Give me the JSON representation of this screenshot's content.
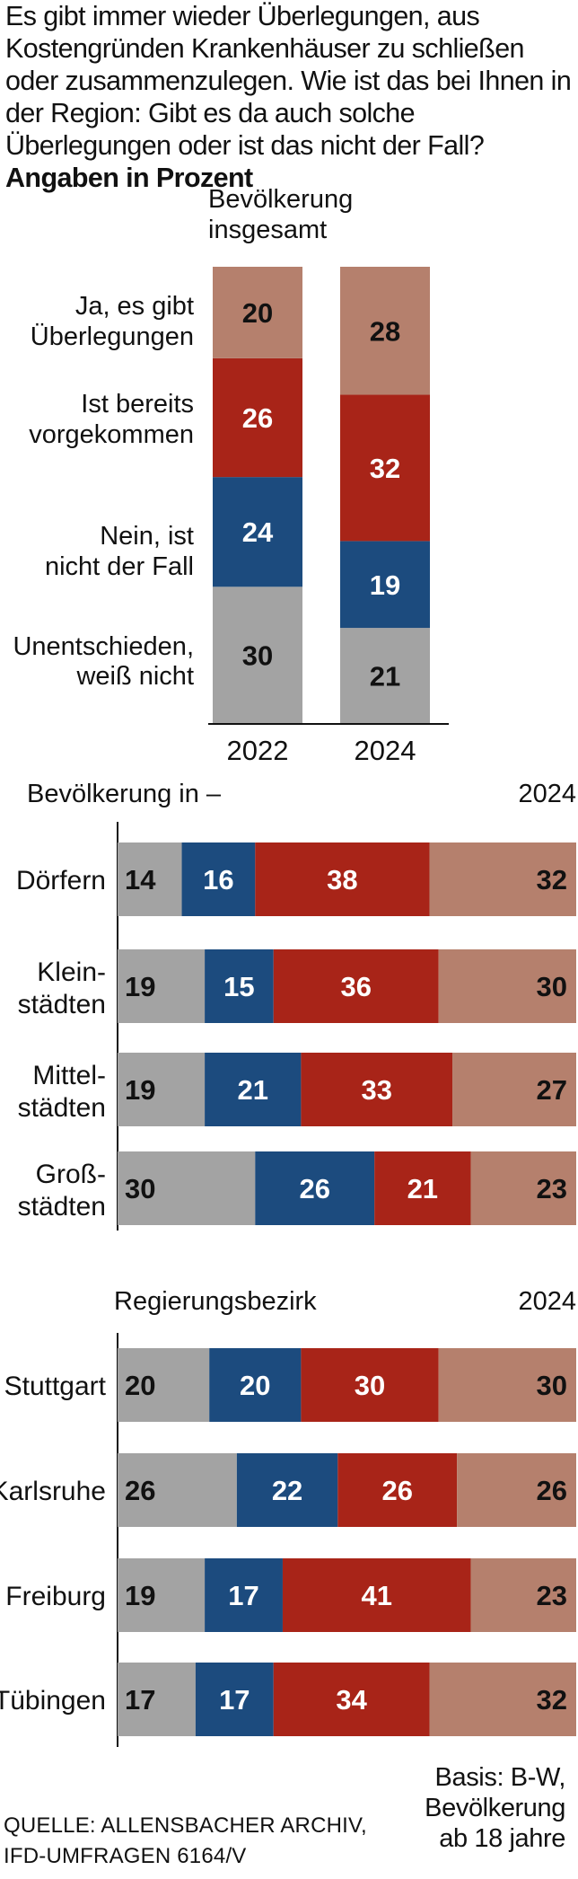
{
  "header": {
    "question": "Es gibt immer wieder Überlegungen, aus Kosten­gründen Krankenhäuser zu schließen oder zu­sammenzulegen. Wie ist das bei Ihnen in der Region: Gibt es da auch solche Überlegungen oder ist das nicht der Fall?",
    "unit_note": "Angaben in Prozent"
  },
  "footer": {
    "source_line1": "QUELLE: ALLENSBACHER ARCHIV,",
    "source_line2": "IFD-UMFRAGEN 6164/V",
    "basis_line1": "Basis: B-W,",
    "basis_line2": "Bevölkerung",
    "basis_line3": "ab 18 jahre"
  },
  "colors": {
    "ja_ueberlegungen": "#b5806d",
    "bereits_vorgekommen": "#a82418",
    "nein": "#1c4b7e",
    "unentschieden": "#a3a3a3",
    "label_light": "#ffffff",
    "label_dark": "#111111"
  },
  "chart_data": [
    {
      "type": "bar",
      "stacked": true,
      "orientation": "vertical",
      "title": "Bevölkerung insgesamt",
      "categories": [
        "2022",
        "2024"
      ],
      "series": [
        {
          "name": "Unentschieden, weiß nicht",
          "values": [
            30,
            21
          ]
        },
        {
          "name": "Nein, ist nicht der Fall",
          "values": [
            24,
            19
          ]
        },
        {
          "name": "Ist bereits vorgekommen",
          "values": [
            26,
            32
          ]
        },
        {
          "name": "Ja, es gibt Überlegungen",
          "values": [
            20,
            28
          ]
        }
      ]
    },
    {
      "type": "bar",
      "stacked": true,
      "orientation": "horizontal",
      "title": "Bevölkerung in –",
      "year": "2024",
      "categories": [
        "Dörfern",
        "Klein-\nstädten",
        "Mittel-\nstädten",
        "Groß-\nstädten"
      ],
      "series": [
        {
          "name": "Unentschieden, weiß nicht",
          "values": [
            14,
            19,
            19,
            30
          ]
        },
        {
          "name": "Nein, ist nicht der Fall",
          "values": [
            16,
            15,
            21,
            26
          ]
        },
        {
          "name": "Ist bereits vorgekommen",
          "values": [
            38,
            36,
            33,
            21
          ]
        },
        {
          "name": "Ja, es gibt Überlegungen",
          "values": [
            32,
            30,
            27,
            23
          ]
        }
      ]
    },
    {
      "type": "bar",
      "stacked": true,
      "orientation": "horizontal",
      "title": "Regierungsbezirk",
      "year": "2024",
      "categories": [
        "Stuttgart",
        "Karlsruhe",
        "Freiburg",
        "Tübingen"
      ],
      "series": [
        {
          "name": "Unentschieden, weiß nicht",
          "values": [
            20,
            26,
            19,
            17
          ]
        },
        {
          "name": "Nein, ist nicht der Fall",
          "values": [
            20,
            22,
            17,
            17
          ]
        },
        {
          "name": "Ist bereits vorgekommen",
          "values": [
            30,
            26,
            41,
            34
          ]
        },
        {
          "name": "Ja, es gibt Überlegungen",
          "values": [
            30,
            26,
            23,
            32
          ]
        }
      ]
    }
  ]
}
